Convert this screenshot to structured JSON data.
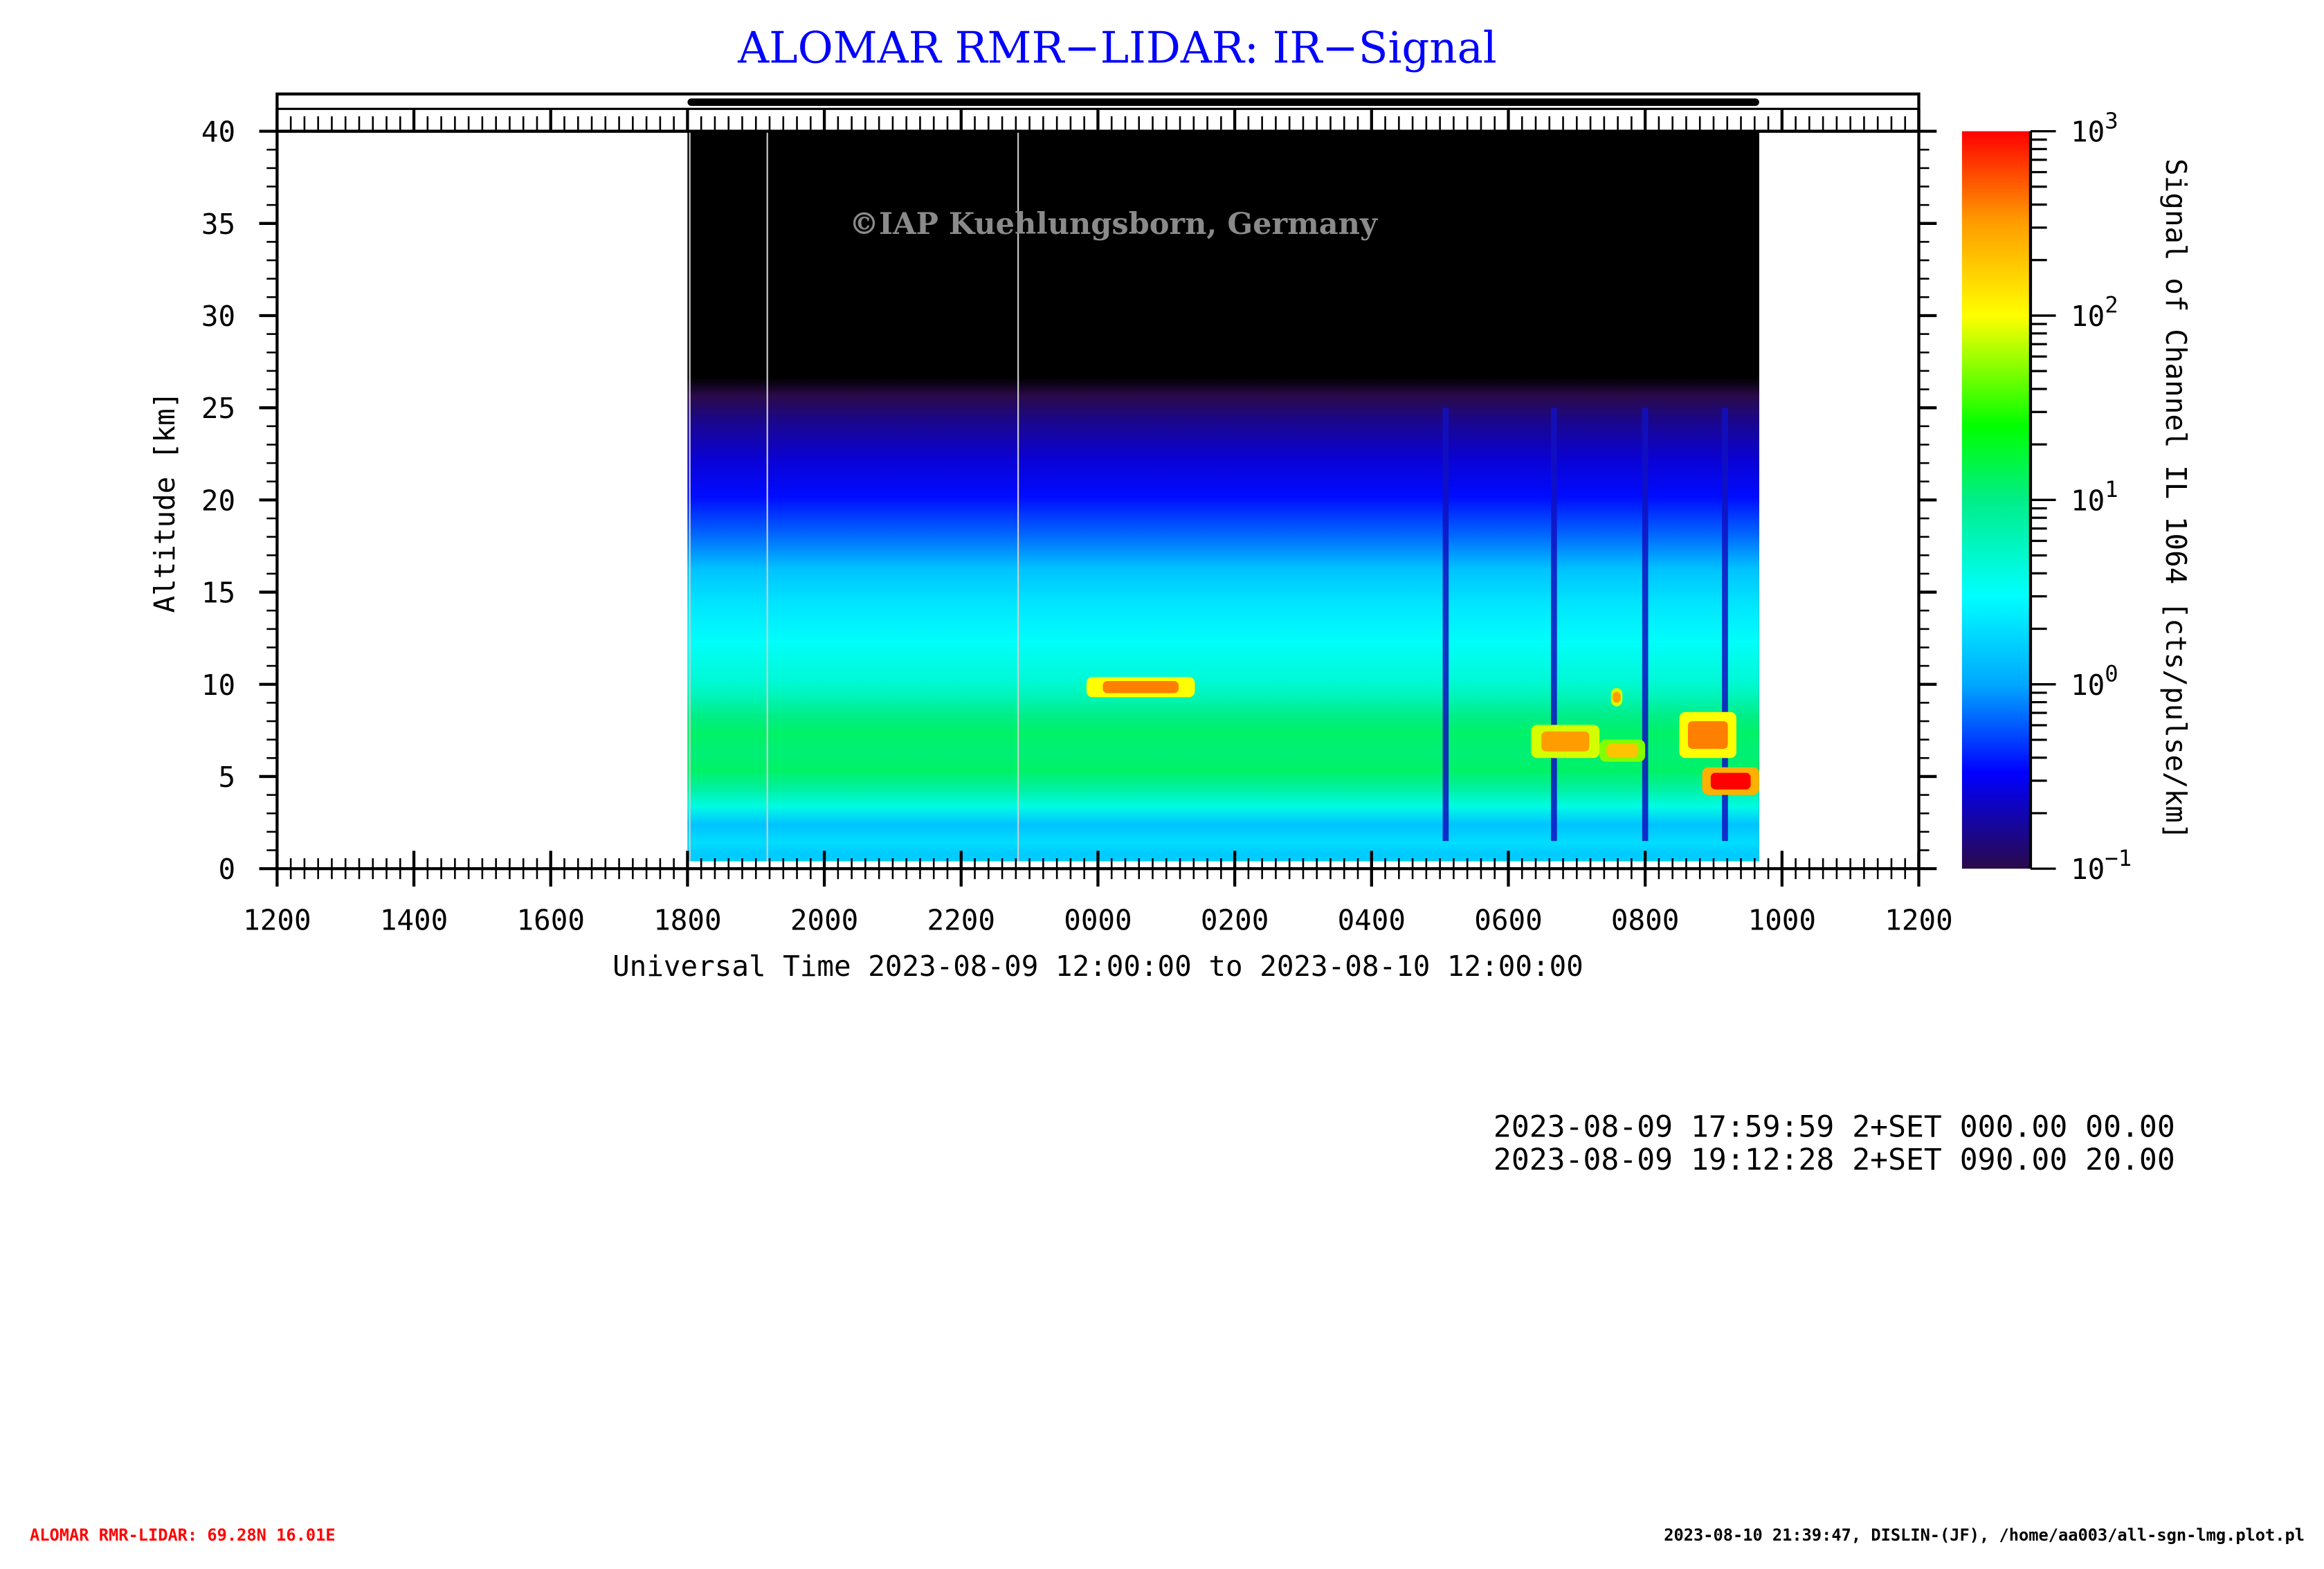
{
  "chart_data": {
    "type": "heatmap",
    "title": "ALOMAR RMR−LIDAR: IR−Signal",
    "watermark": "©IAP Kuehlungsborn, Germany",
    "xlabel": "Universal Time 2023-08-09 12:00:00 to 2023-08-10 12:00:00",
    "ylabel": "Altitude [km]",
    "x_tick_labels": [
      "1200",
      "1400",
      "1600",
      "1800",
      "2000",
      "2200",
      "0000",
      "0200",
      "0400",
      "0600",
      "0800",
      "1000",
      "1200"
    ],
    "xlim_hours": [
      0,
      24
    ],
    "ylim": [
      0,
      40
    ],
    "y_ticks": [
      0,
      5,
      10,
      15,
      20,
      25,
      30,
      35,
      40
    ],
    "colorbar": {
      "label": "Signal of Channel IL 1064 [cts/pulse/km]",
      "scale": "log",
      "range": [
        0.1,
        1000
      ],
      "tick_labels": [
        {
          "base": "10",
          "exp": "−1"
        },
        {
          "base": "10",
          "exp": "0"
        },
        {
          "base": "10",
          "exp": "1"
        },
        {
          "base": "10",
          "exp": "2"
        },
        {
          "base": "10",
          "exp": "3"
        }
      ],
      "colormap": [
        "#2a0a4a",
        "#0000ff",
        "#00a8ff",
        "#00ffff",
        "#00ee88",
        "#00ff00",
        "#ffff00",
        "#ff9900",
        "#ff0000"
      ]
    },
    "measurement_period": {
      "start": "1800",
      "end": "0940"
    },
    "mean_profile_log10_signal": [
      {
        "alt_km": 0.5,
        "value": 0.2
      },
      {
        "alt_km": 1,
        "value": 0.3
      },
      {
        "alt_km": 2,
        "value": 0.15
      },
      {
        "alt_km": 3,
        "value": 0.6
      },
      {
        "alt_km": 4,
        "value": 0.9
      },
      {
        "alt_km": 5,
        "value": 1.1
      },
      {
        "alt_km": 6,
        "value": 1.05
      },
      {
        "alt_km": 7,
        "value": 1.1
      },
      {
        "alt_km": 8,
        "value": 1.0
      },
      {
        "alt_km": 9,
        "value": 0.8
      },
      {
        "alt_km": 10,
        "value": 0.65
      },
      {
        "alt_km": 12,
        "value": 0.5
      },
      {
        "alt_km": 14,
        "value": 0.35
      },
      {
        "alt_km": 16,
        "value": 0.15
      },
      {
        "alt_km": 18,
        "value": -0.2
      },
      {
        "alt_km": 20,
        "value": -0.45
      },
      {
        "alt_km": 22,
        "value": -0.6
      },
      {
        "alt_km": 24,
        "value": -0.8
      },
      {
        "alt_km": 25.5,
        "value": -1.0
      }
    ],
    "clouds": [
      {
        "start": "2350",
        "end": "0125",
        "base_km": 9.3,
        "top_km": 10.4,
        "log10_signal": 2.6
      },
      {
        "start": "0620",
        "end": "0720",
        "base_km": 6.0,
        "top_km": 7.8,
        "log10_signal": 2.5
      },
      {
        "start": "0720",
        "end": "0800",
        "base_km": 5.8,
        "top_km": 7.0,
        "log10_signal": 2.3
      },
      {
        "start": "0730",
        "end": "0740",
        "base_km": 8.8,
        "top_km": 9.8,
        "log10_signal": 2.5
      },
      {
        "start": "0830",
        "end": "0920",
        "base_km": 6.0,
        "top_km": 8.5,
        "log10_signal": 2.6
      },
      {
        "start": "0850",
        "end": "0940",
        "base_km": 4.0,
        "top_km": 5.5,
        "log10_signal": 3.0
      }
    ],
    "signal_dropouts": [
      "0505",
      "0640",
      "0800",
      "0910"
    ],
    "data_gaps": [
      "1802",
      "1910",
      "2250"
    ]
  },
  "info_lines": [
    "2023-08-09 17:59:59 2+SET 000.00 00.00",
    "2023-08-09 19:12:28 2+SET 090.00 20.00"
  ],
  "footer": {
    "station": "ALOMAR RMR-LIDAR: 69.28N 16.01E",
    "credits": "2023-08-10 21:39:47, DISLIN-(JF), /home/aa003/all-sgn-lmg.plot.pl"
  }
}
